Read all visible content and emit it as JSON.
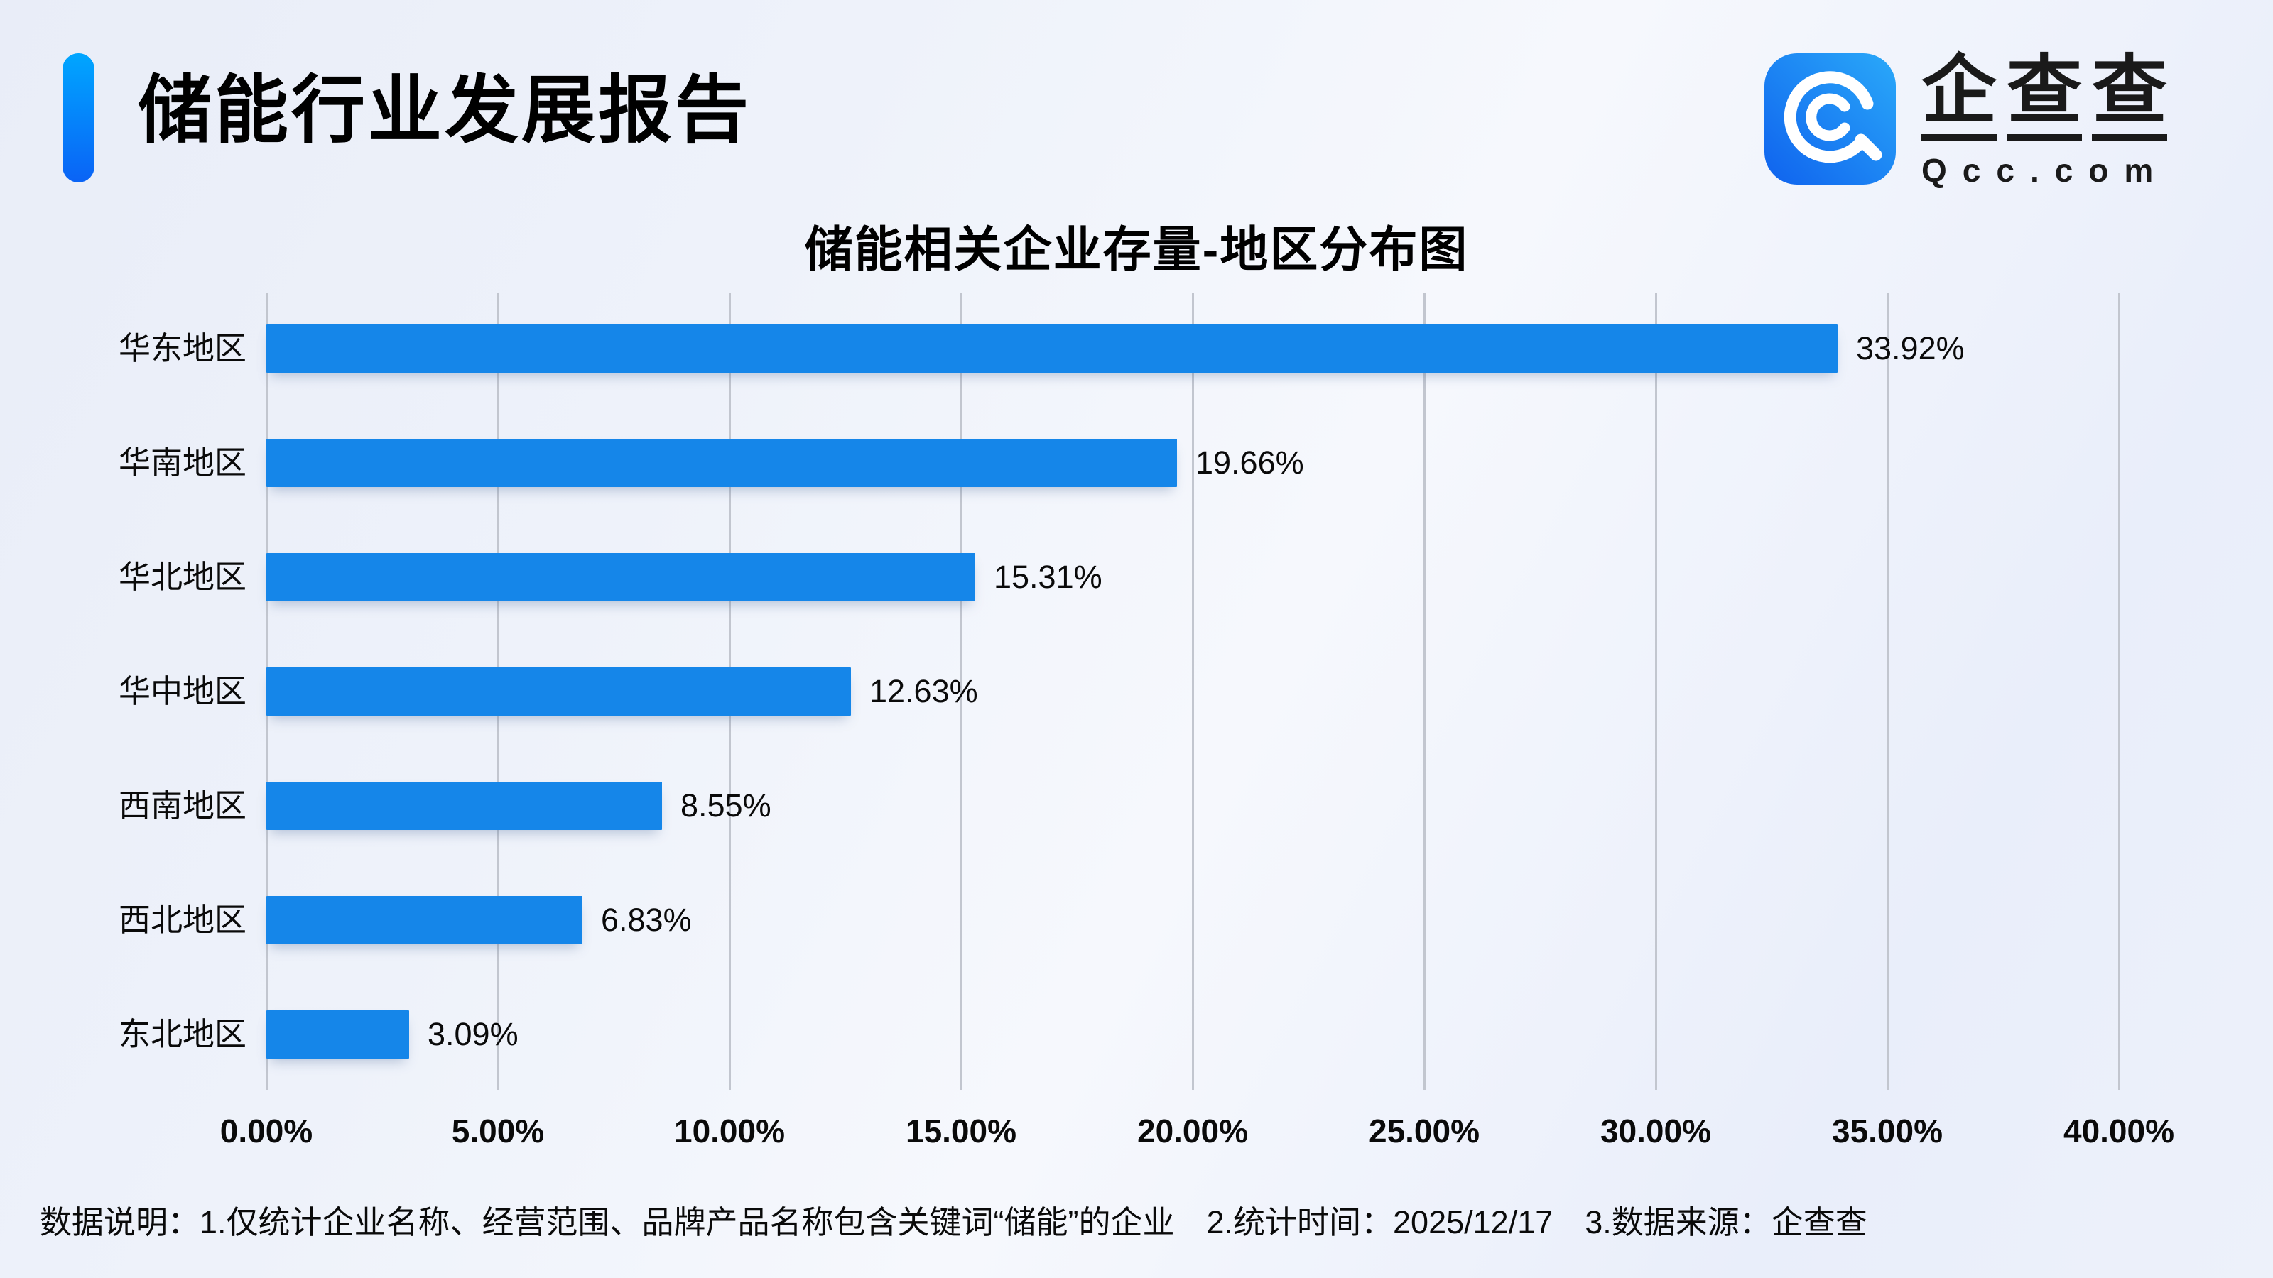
{
  "header": {
    "title": "储能行业发展报告",
    "logo": {
      "brand": "企查查",
      "domain": "Qcc.com"
    }
  },
  "chart_data": {
    "type": "bar",
    "orientation": "horizontal",
    "title": "储能相关企业存量-地区分布图",
    "categories": [
      "华东地区",
      "华南地区",
      "华北地区",
      "华中地区",
      "西南地区",
      "西北地区",
      "东北地区"
    ],
    "values": [
      33.92,
      19.66,
      15.31,
      12.63,
      8.55,
      6.83,
      3.09
    ],
    "value_labels": [
      "33.92%",
      "19.66%",
      "15.31%",
      "12.63%",
      "8.55%",
      "6.83%",
      "3.09%"
    ],
    "x_ticks": [
      "0.00%",
      "5.00%",
      "10.00%",
      "15.00%",
      "20.00%",
      "25.00%",
      "30.00%",
      "35.00%",
      "40.00%"
    ],
    "xlim": [
      0,
      40
    ],
    "grid": true,
    "legend": "none",
    "bar_color": "#1586e9"
  },
  "footnote": "数据说明：1.仅统计企业名称、经营范围、品牌产品名称包含关键词“储能”的企业　2.统计时间：2025/12/17　3.数据来源：企查查",
  "colors": {
    "accent_top": "#00a6ff",
    "accent_bottom": "#0a63f6",
    "bar": "#1586e9",
    "grid": "#c2c6cf",
    "logo_gradient_light": "#2aa9f9",
    "logo_gradient_dark": "#0f62ee",
    "text": "#0a0a0a"
  }
}
